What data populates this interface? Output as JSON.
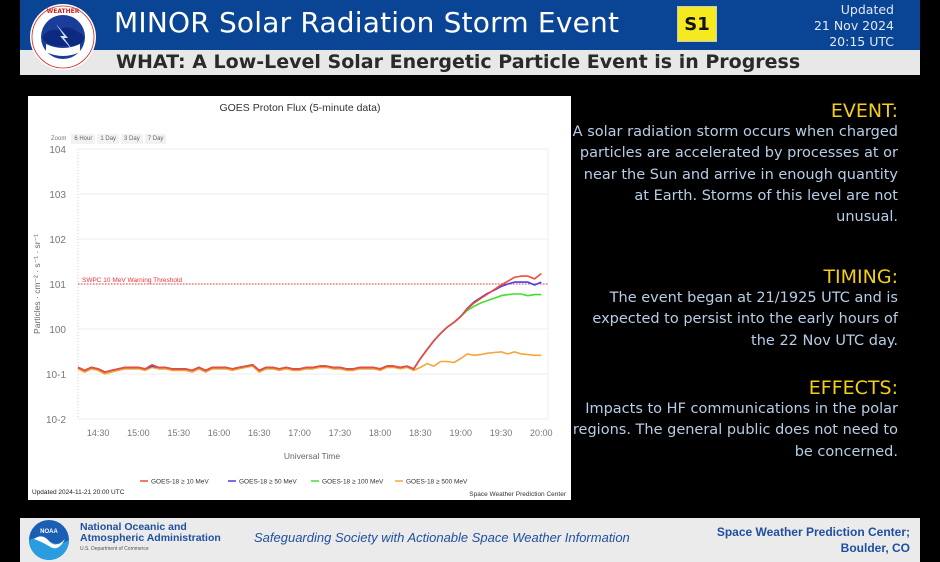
{
  "header": {
    "title": "MINOR Solar Radiation Storm Event",
    "scale_badge": "S1",
    "updated_label": "Updated",
    "updated_date": "21 Nov 2024",
    "updated_time": "20:15 UTC",
    "subtitle": "WHAT: A Low-Level Solar Energetic Particle Event is in Progress",
    "logo": "nws-logo-icon"
  },
  "chart_data": {
    "type": "line",
    "title": "GOES Proton Flux (5-minute data)",
    "xlabel": "Universal Time",
    "ylabel": "Particles · cm⁻² · s⁻¹ · sr⁻¹",
    "yscale": "log",
    "ylim": [
      0.01,
      10000
    ],
    "xlim": [
      "14:15",
      "20:05"
    ],
    "yticks": [
      "10-2",
      "10-1",
      "100",
      "101",
      "102",
      "103",
      "104"
    ],
    "xticks": [
      "14:30",
      "15:00",
      "15:30",
      "16:00",
      "16:30",
      "17:00",
      "17:30",
      "18:00",
      "18:30",
      "19:00",
      "19:30",
      "20:00"
    ],
    "zoom_label": "Zoom",
    "zoom_options": [
      "6 Hour",
      "1 Day",
      "3 Day",
      "7 Day"
    ],
    "threshold": {
      "label": "SWPC 10 MeV Warning Threshold",
      "value": 10,
      "color": "#ee3333"
    },
    "updated_note": "Updated 2024-11-21 20:00 UTC",
    "credit": "Space Weather Prediction Center",
    "legend_position": "bottom",
    "x": [
      "14:15",
      "14:20",
      "14:25",
      "14:30",
      "14:35",
      "14:40",
      "14:45",
      "14:50",
      "14:55",
      "15:00",
      "15:05",
      "15:10",
      "15:15",
      "15:20",
      "15:25",
      "15:30",
      "15:35",
      "15:40",
      "15:45",
      "15:50",
      "15:55",
      "16:00",
      "16:05",
      "16:10",
      "16:15",
      "16:20",
      "16:25",
      "16:30",
      "16:35",
      "16:40",
      "16:45",
      "16:50",
      "16:55",
      "17:00",
      "17:05",
      "17:10",
      "17:15",
      "17:20",
      "17:25",
      "17:30",
      "17:35",
      "17:40",
      "17:45",
      "17:50",
      "17:55",
      "18:00",
      "18:05",
      "18:10",
      "18:15",
      "18:20",
      "18:25",
      "18:30",
      "18:35",
      "18:40",
      "18:45",
      "18:50",
      "18:55",
      "19:00",
      "19:05",
      "19:10",
      "19:15",
      "19:20",
      "19:25",
      "19:30",
      "19:35",
      "19:40",
      "19:45",
      "19:50",
      "19:55",
      "20:00"
    ],
    "series": [
      {
        "name": "GOES-18 ≥ 10 MeV",
        "color": "#f04a3a",
        "values": [
          0.14,
          0.12,
          0.14,
          0.13,
          0.11,
          0.12,
          0.13,
          0.14,
          0.14,
          0.14,
          0.13,
          0.16,
          0.14,
          0.14,
          0.13,
          0.13,
          0.13,
          0.12,
          0.14,
          0.12,
          0.14,
          0.14,
          0.14,
          0.13,
          0.14,
          0.15,
          0.16,
          0.12,
          0.14,
          0.14,
          0.13,
          0.14,
          0.13,
          0.13,
          0.14,
          0.14,
          0.15,
          0.15,
          0.14,
          0.14,
          0.13,
          0.13,
          0.14,
          0.14,
          0.14,
          0.13,
          0.15,
          0.15,
          0.14,
          0.15,
          0.13,
          0.22,
          0.35,
          0.55,
          0.8,
          1.1,
          1.4,
          1.9,
          2.8,
          3.8,
          4.8,
          6.0,
          7.5,
          9.5,
          11.5,
          14,
          15,
          15,
          13,
          17
        ]
      },
      {
        "name": "GOES-18 ≥ 50 MeV",
        "color": "#4b3de0",
        "values": [
          0.14,
          0.12,
          0.14,
          0.13,
          0.11,
          0.12,
          0.13,
          0.14,
          0.14,
          0.14,
          0.13,
          0.15,
          0.14,
          0.14,
          0.13,
          0.13,
          0.13,
          0.12,
          0.14,
          0.12,
          0.14,
          0.14,
          0.14,
          0.13,
          0.14,
          0.15,
          0.16,
          0.12,
          0.14,
          0.14,
          0.13,
          0.14,
          0.13,
          0.13,
          0.14,
          0.14,
          0.15,
          0.15,
          0.14,
          0.14,
          0.13,
          0.13,
          0.14,
          0.14,
          0.14,
          0.13,
          0.15,
          0.15,
          0.14,
          0.15,
          0.13,
          0.22,
          0.35,
          0.55,
          0.8,
          1.1,
          1.4,
          1.9,
          2.9,
          4.0,
          5.0,
          6.2,
          7.3,
          8.8,
          10,
          11,
          11,
          11,
          9.5,
          11
        ]
      },
      {
        "name": "GOES-18 ≥ 100 MeV",
        "color": "#44dd33",
        "values": [
          0.14,
          0.12,
          0.14,
          0.13,
          0.11,
          0.12,
          0.13,
          0.14,
          0.14,
          0.14,
          0.13,
          0.15,
          0.14,
          0.14,
          0.13,
          0.13,
          0.13,
          0.12,
          0.14,
          0.12,
          0.14,
          0.14,
          0.14,
          0.13,
          0.14,
          0.15,
          0.16,
          0.12,
          0.14,
          0.14,
          0.13,
          0.14,
          0.13,
          0.13,
          0.14,
          0.14,
          0.15,
          0.15,
          0.14,
          0.14,
          0.13,
          0.13,
          0.14,
          0.14,
          0.14,
          0.13,
          0.15,
          0.15,
          0.14,
          0.15,
          0.13,
          0.22,
          0.35,
          0.55,
          0.8,
          1.1,
          1.4,
          1.9,
          2.6,
          3.2,
          3.8,
          4.3,
          4.8,
          5.5,
          5.8,
          6.0,
          6.0,
          5.5,
          5.8,
          5.8
        ]
      },
      {
        "name": "GOES-18 ≥ 500 MeV",
        "color": "#f5a53a",
        "values": [
          0.13,
          0.11,
          0.13,
          0.12,
          0.1,
          0.11,
          0.12,
          0.13,
          0.13,
          0.13,
          0.12,
          0.14,
          0.13,
          0.13,
          0.12,
          0.12,
          0.12,
          0.11,
          0.13,
          0.11,
          0.13,
          0.13,
          0.13,
          0.12,
          0.13,
          0.14,
          0.15,
          0.11,
          0.13,
          0.13,
          0.12,
          0.13,
          0.12,
          0.12,
          0.13,
          0.13,
          0.14,
          0.14,
          0.13,
          0.13,
          0.12,
          0.12,
          0.13,
          0.13,
          0.13,
          0.12,
          0.14,
          0.14,
          0.13,
          0.14,
          0.12,
          0.14,
          0.17,
          0.15,
          0.19,
          0.19,
          0.18,
          0.22,
          0.28,
          0.26,
          0.27,
          0.29,
          0.3,
          0.31,
          0.28,
          0.31,
          0.28,
          0.27,
          0.26,
          0.26
        ]
      }
    ]
  },
  "info": {
    "event_heading": "EVENT:",
    "event_body": "A solar radiation storm occurs when charged particles are accelerated by processes at or near the Sun and arrive in enough quantity at Earth. Storms of this level are not unusual.",
    "timing_heading": "TIMING:",
    "timing_body": "The event began at 21/1925 UTC and is expected to persist into the early hours of the 22 Nov UTC day.",
    "effects_heading": "EFFECTS:",
    "effects_body": "Impacts to HF communications in the polar regions. The general public does not need to be concerned."
  },
  "footer": {
    "noaa_line1": "National Oceanic and",
    "noaa_line2": "Atmospheric Administration",
    "noaa_dept": "U.S. Department of Commerce",
    "noaa_logo_text": "NOAA",
    "tagline": "Safeguarding Society with Actionable Space Weather Information",
    "swpc_line1": "Space Weather Prediction Center;",
    "swpc_line2": "Boulder, CO"
  }
}
